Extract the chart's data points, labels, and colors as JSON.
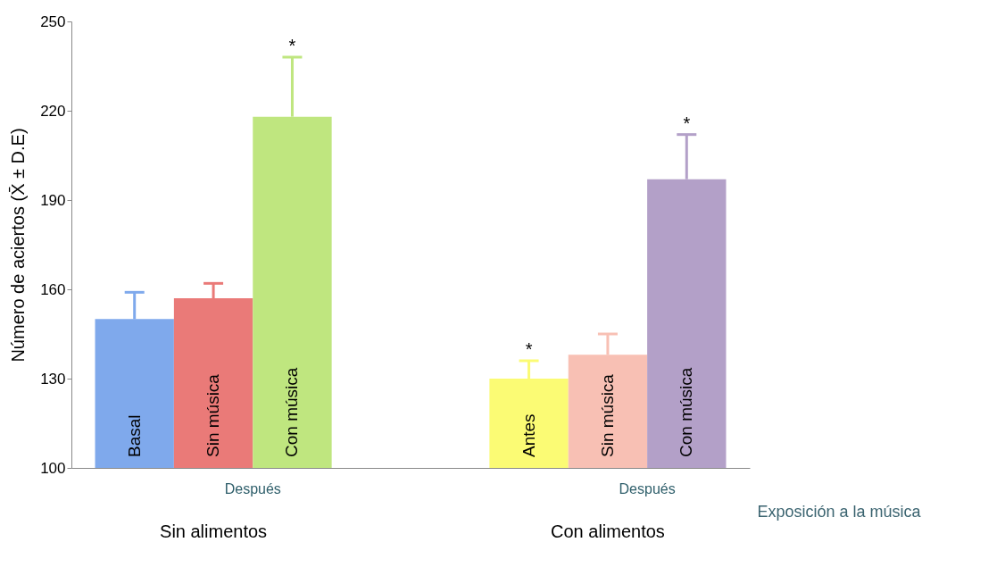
{
  "chart_data": {
    "type": "bar",
    "ylabel": "Número de aciertos (X̄ ± D.E)",
    "xlabel": "Exposición a la música",
    "categories": [
      "Basal",
      "Sin música",
      "Con música",
      null,
      null,
      "Antes",
      "Sin música",
      "Con música"
    ],
    "values": [
      150,
      157,
      218,
      null,
      null,
      130,
      138,
      197
    ],
    "colors": [
      "#7fa9ec",
      "#ea7a78",
      "#bfe67f",
      "#ffffff",
      "#ffffff",
      "#fbfb74",
      "#f8c0b4",
      "#b3a0c8"
    ],
    "errors": [
      [
        150,
        159
      ],
      [
        157,
        162
      ],
      [
        218,
        238
      ],
      null,
      null,
      [
        130,
        136
      ],
      [
        138,
        145
      ],
      [
        197,
        212
      ]
    ],
    "ylim": [
      100,
      250
    ],
    "yticks": [
      100,
      130,
      160,
      190,
      220,
      250
    ],
    "grid": false,
    "annotations": [
      "Después",
      "Después",
      "Sin alimentos",
      "Con alimentos",
      {
        "text": "*",
        "x": "Con música",
        "y": 238
      },
      {
        "text": "*",
        "x": "Antes",
        "y": 136
      },
      {
        "text": "*",
        "y": 212
      }
    ]
  }
}
